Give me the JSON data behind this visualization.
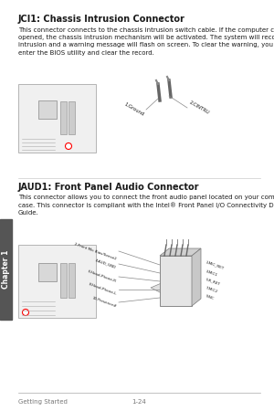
{
  "bg_color": "#ffffff",
  "sidebar_color": "#555555",
  "sidebar_text": "Chapter 1",
  "section1_title": "JCI1: Chassis Intrusion Connector",
  "section1_body": "This connector connects to the chassis intrusion switch cable. If the computer case is\nopened, the chassis intrusion mechanism will be activated. The system will record this\nintrusion and a warning message will flash on screen. To clear the warning, you must\nenter the BIOS utility and clear the record.",
  "section2_title": "JAUD1: Front Panel Audio Connector",
  "section2_body": "This connector allows you to connect the front audio panel located on your computer\ncase. This connector is compliant with the Intel® Front Panel I/O Connectivity Design\nGuide.",
  "footer_left": "Getting Started",
  "footer_right": "1-24",
  "text_color": "#1a1a1a",
  "gray_color": "#777777",
  "label1_1": "1.Ground",
  "label1_2": "2.CINTRU",
  "left_labels": [
    "2.Front Mic Bias/Sense2",
    "4.AUD_GND",
    "6.Head-Phone-R",
    "8.Head-Phone-L",
    "10.Presence#"
  ],
  "right_labels": [
    "1.MIC_RET",
    "3.MIC1",
    "5.R_RET",
    "7.MIC2",
    "9.NC",
    "                   "
  ]
}
